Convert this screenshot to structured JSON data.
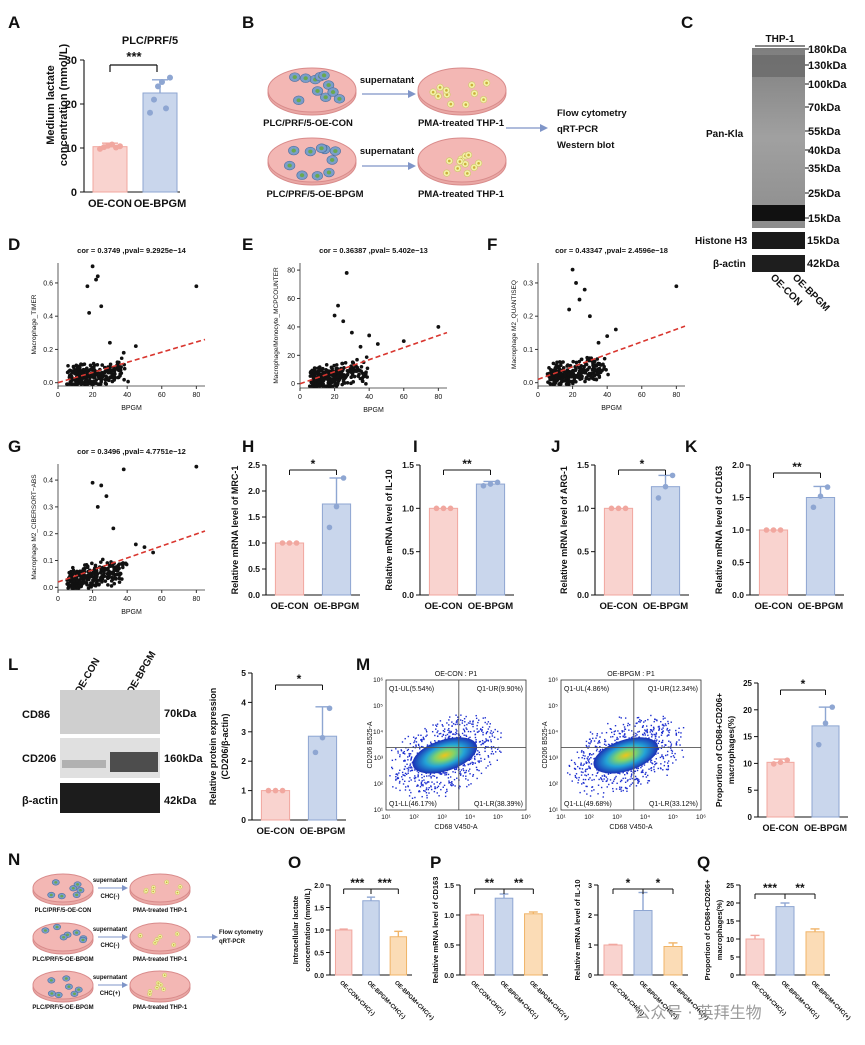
{
  "colors": {
    "control_fill": "#f9d3cf",
    "control_edge": "#f1a79f",
    "treat_fill": "#c9d6ec",
    "treat_edge": "#8ea6d2",
    "chc_fill": "#fbdcb6",
    "chc_edge": "#f0b468",
    "scatter_dot": "#111111",
    "regression": "#d9362f",
    "dish_edge": "#d98b8b",
    "dish_fill": "#f3b7b4",
    "arrow": "#7f95c8"
  },
  "panel_labels": [
    "A",
    "B",
    "C",
    "D",
    "E",
    "F",
    "G",
    "H",
    "I",
    "J",
    "K",
    "L",
    "M",
    "N",
    "O",
    "P",
    "Q"
  ],
  "panel_a": {
    "title": "PLC/PRF/5",
    "ylabel_line1": "Medium lactate",
    "ylabel_line2": "concentration (mmol/L)",
    "sig": "***",
    "ticks": [
      "0",
      "10",
      "20",
      "30"
    ],
    "categories": [
      "OE-CON",
      "OE-BPGM"
    ]
  },
  "panel_b": {
    "row1_left": "PLC/PRF/5-OE-CON",
    "row1_right": "PMA-treated THP-1",
    "row2_left": "PLC/PRF/5-OE-BPGM",
    "row2_right": "PMA-treated THP-1",
    "arrow_label": "supernatant",
    "methods": [
      "Flow cytometry",
      "qRT-PCR",
      "Western blot"
    ]
  },
  "panel_c": {
    "cell_line": "THP-1",
    "label_main": "Pan-Kla",
    "markers": [
      "180kDa",
      "130kDa",
      "100kDa",
      "70kDa",
      "55kDa",
      "40kDa",
      "35kDa",
      "25kDa",
      "15kDa"
    ],
    "histone": "Histone H3",
    "histone_kda": "15kDa",
    "actin": "β-actin",
    "actin_kda": "42kDa",
    "lanes": [
      "OE-CON",
      "OE-BPGM"
    ]
  },
  "scatter_panels": [
    {
      "title": "cor = 0.3749 ,pval= 9.2925e−14",
      "ylabel": "Macrophage_TIMER",
      "xlabel": "BPGM",
      "yticks": [
        "0.0",
        "0.2",
        "0.4",
        "0.6"
      ],
      "xticks": [
        "0",
        "20",
        "40",
        "60",
        "80"
      ]
    },
    {
      "title": "cor = 0.36387 ,pval= 5.402e−13",
      "ylabel": "Macrophage/Monocyte_MCPCOUNTER",
      "xlabel": "BPGM",
      "yticks": [
        "0",
        "20",
        "40",
        "60",
        "80"
      ],
      "xticks": [
        "0",
        "20",
        "40",
        "60",
        "80"
      ]
    },
    {
      "title": "cor = 0.43347 ,pval= 2.4596e−18",
      "ylabel": "Macrophage M2_QUANTISEQ",
      "xlabel": "BPGM",
      "yticks": [
        "0.0",
        "0.1",
        "0.2",
        "0.3"
      ],
      "xticks": [
        "0",
        "20",
        "40",
        "60",
        "80"
      ]
    },
    {
      "title": "cor = 0.3496 ,pval= 4.7751e−12",
      "ylabel": "Macrophage M2_CIBERSORT−ABS",
      "xlabel": "BPGM",
      "yticks": [
        "0.0",
        "0.1",
        "0.2",
        "0.3",
        "0.4"
      ],
      "xticks": [
        "0",
        "20",
        "40",
        "60",
        "80"
      ]
    }
  ],
  "qpcr_panels": [
    {
      "ylabel": "Relative mRNA level of MRC-1",
      "sig": "*",
      "yticks": [
        "0.0",
        "0.5",
        "1.0",
        "1.5",
        "2.0",
        "2.5"
      ],
      "categories": [
        "OE-CON",
        "OE-BPGM"
      ]
    },
    {
      "ylabel": "Relative mRNA level of IL-10",
      "sig": "**",
      "yticks": [
        "0.0",
        "0.5",
        "1.0",
        "1.5"
      ],
      "categories": [
        "OE-CON",
        "OE-BPGM"
      ]
    },
    {
      "ylabel": "Relative mRNA level of ARG-1",
      "sig": "*",
      "yticks": [
        "0.0",
        "0.5",
        "1.0",
        "1.5"
      ],
      "categories": [
        "OE-CON",
        "OE-BPGM"
      ]
    },
    {
      "ylabel": "Relative mRNA level of CD163",
      "sig": "**",
      "yticks": [
        "0.0",
        "0.5",
        "1.0",
        "1.5",
        "2.0"
      ],
      "categories": [
        "OE-CON",
        "OE-BPGM"
      ]
    }
  ],
  "panel_l": {
    "lanes": [
      "OE-CON",
      "OE-BPGM"
    ],
    "rows": [
      {
        "name": "CD86",
        "kda": "70kDa"
      },
      {
        "name": "CD206",
        "kda": "160kDa"
      },
      {
        "name": "β-actin",
        "kda": "42kDa"
      }
    ],
    "ylabel_line1": "Relative protein expression",
    "ylabel_line2": "(CD206/β-actin)",
    "sig": "*",
    "yticks": [
      "0",
      "1",
      "2",
      "3",
      "4",
      "5"
    ],
    "categories": [
      "OE-CON",
      "OE-BPGM"
    ]
  },
  "panel_m": {
    "plots": [
      {
        "title": "OE-CON : P1",
        "ul": "Q1-UL(5.54%)",
        "ur": "Q1-UR(9.90%)",
        "ll": "Q1-LL(46.17%)",
        "lr": "Q1-LR(38.39%)"
      },
      {
        "title": "OE-BPGM : P1",
        "ul": "Q1-UL(4.86%)",
        "ur": "Q1-UR(12.34%)",
        "ll": "Q1-LL(49.68%)",
        "lr": "Q1-LR(33.12%)"
      }
    ],
    "xlabel": "CD68 V450-A",
    "ylabel": "CD206 B525-A",
    "yticks": [
      "10¹",
      "10²",
      "10³",
      "10⁴",
      "10⁵",
      "10⁶"
    ],
    "xticks": [
      "10¹",
      "10²",
      "10³",
      "10⁴",
      "10⁵",
      "10⁶"
    ],
    "bar_ylabel_line1": "Proportion of CD68+CD206+",
    "bar_ylabel_line2": "macrophages(%)",
    "sig": "*",
    "bar_yticks": [
      "0",
      "5",
      "10",
      "15",
      "20",
      "25"
    ],
    "categories": [
      "OE-CON",
      "OE-BPGM"
    ]
  },
  "panel_n": {
    "row1_left": "PLC/PRF/5-OE-CON",
    "row2_left": "PLC/PRF/5-OE-BPGM",
    "row3_left": "PLC/PRF/5-OE-BPGM",
    "right": "PMA-treated THP-1",
    "arrow_label": "supernatant",
    "chc": [
      "CHC(-)",
      "CHC(-)",
      "CHC(+)"
    ],
    "methods": [
      "Flow cytometry",
      "qRT-PCR"
    ]
  },
  "triple_categories": [
    "OE-CON+CHC(-)",
    "OE-BPGM+CHC(-)",
    "OE-BPGM+CHC(+)"
  ],
  "panel_o": {
    "ylabel_line1": "Intracellular lactate",
    "ylabel_line2": "concentration (mmol/L)",
    "yticks": [
      "0.0",
      "0.5",
      "1.0",
      "1.5",
      "2.0"
    ],
    "sigs": [
      "***",
      "***"
    ]
  },
  "panel_p1": {
    "ylabel": "Relative mRNA level of CD163",
    "yticks": [
      "0.0",
      "0.5",
      "1.0",
      "1.5"
    ],
    "sigs": [
      "**",
      "**"
    ]
  },
  "panel_p2": {
    "ylabel": "Relative mRNA level of IL-10",
    "yticks": [
      "0",
      "1",
      "2",
      "3"
    ],
    "sigs": [
      "*",
      "*"
    ]
  },
  "panel_q": {
    "ylabel_line1": "Proportion of CD68+CD206+",
    "ylabel_line2": "macrophages(%)",
    "yticks": [
      "0",
      "5",
      "10",
      "15",
      "20",
      "25"
    ],
    "sigs": [
      "***",
      "**"
    ]
  },
  "watermark": "公众号 · 英拜生物",
  "chart_data": [
    {
      "panel": "A",
      "type": "bar",
      "title": "PLC/PRF/5",
      "categories": [
        "OE-CON",
        "OE-BPGM"
      ],
      "values": [
        10.3,
        22.5
      ],
      "errors": [
        0.8,
        3.0
      ],
      "ylabel": "Medium lactate concentration (mmol/L)",
      "ylim": [
        0,
        30
      ],
      "points": [
        [
          9.8,
          10.2,
          10.5,
          10.8,
          10.1,
          10.4
        ],
        [
          18,
          21,
          24,
          25,
          19,
          26
        ]
      ]
    },
    {
      "panel": "D",
      "type": "scatter",
      "title": "cor = 0.3749 ,pval= 9.2925e−14",
      "xlabel": "BPGM",
      "ylabel": "Macrophage_TIMER",
      "xlim": [
        0,
        85
      ],
      "ylim": [
        -0.02,
        0.72
      ],
      "regression": {
        "x0": 0,
        "y0": 0.0,
        "x1": 85,
        "y1": 0.26
      },
      "outliers": [
        [
          20,
          0.7
        ],
        [
          23,
          0.64
        ],
        [
          17,
          0.58
        ],
        [
          22,
          0.62
        ],
        [
          45,
          0.22
        ],
        [
          80,
          0.58
        ],
        [
          38,
          0.18
        ],
        [
          30,
          0.24
        ],
        [
          25,
          0.46
        ],
        [
          18,
          0.42
        ]
      ]
    },
    {
      "panel": "E",
      "type": "scatter",
      "title": "cor = 0.36387 ,pval= 5.402e−13",
      "xlabel": "BPGM",
      "ylabel": "Macrophage/Monocyte_MCPCOUNTER",
      "xlim": [
        0,
        85
      ],
      "ylim": [
        -3,
        85
      ],
      "regression": {
        "x0": 0,
        "y0": 0,
        "x1": 85,
        "y1": 36
      },
      "outliers": [
        [
          27,
          78
        ],
        [
          22,
          55
        ],
        [
          20,
          48
        ],
        [
          25,
          44
        ],
        [
          40,
          34
        ],
        [
          60,
          30
        ],
        [
          80,
          40
        ],
        [
          30,
          36
        ],
        [
          45,
          28
        ],
        [
          35,
          26
        ]
      ]
    },
    {
      "panel": "F",
      "type": "scatter",
      "title": "cor = 0.43347 ,pval= 2.4596e−18",
      "xlabel": "BPGM",
      "ylabel": "Macrophage M2_QUANTISEQ",
      "xlim": [
        0,
        85
      ],
      "ylim": [
        -0.01,
        0.36
      ],
      "regression": {
        "x0": 0,
        "y0": 0.01,
        "x1": 85,
        "y1": 0.17
      },
      "outliers": [
        [
          20,
          0.34
        ],
        [
          22,
          0.3
        ],
        [
          27,
          0.28
        ],
        [
          24,
          0.25
        ],
        [
          30,
          0.2
        ],
        [
          45,
          0.16
        ],
        [
          80,
          0.29
        ],
        [
          35,
          0.12
        ],
        [
          40,
          0.14
        ],
        [
          18,
          0.22
        ]
      ]
    },
    {
      "panel": "G",
      "type": "scatter",
      "title": "cor = 0.3496 ,pval= 4.7751e−12",
      "xlabel": "BPGM",
      "ylabel": "Macrophage M2_CIBERSORT−ABS",
      "xlim": [
        0,
        85
      ],
      "ylim": [
        -0.01,
        0.46
      ],
      "regression": {
        "x0": 0,
        "y0": 0.02,
        "x1": 85,
        "y1": 0.21
      },
      "outliers": [
        [
          20,
          0.39
        ],
        [
          25,
          0.38
        ],
        [
          38,
          0.44
        ],
        [
          45,
          0.16
        ],
        [
          55,
          0.13
        ],
        [
          80,
          0.45
        ],
        [
          28,
          0.34
        ],
        [
          23,
          0.3
        ],
        [
          32,
          0.22
        ],
        [
          50,
          0.15
        ]
      ]
    },
    {
      "panel": "H",
      "type": "bar",
      "categories": [
        "OE-CON",
        "OE-BPGM"
      ],
      "values": [
        1.0,
        1.75
      ],
      "errors": [
        0.0,
        0.5
      ],
      "ylabel": "Relative mRNA level of MRC-1",
      "ylim": [
        0,
        2.5
      ],
      "points": [
        [
          1,
          1,
          1
        ],
        [
          1.3,
          1.7,
          2.25
        ]
      ]
    },
    {
      "panel": "I",
      "type": "bar",
      "categories": [
        "OE-CON",
        "OE-BPGM"
      ],
      "values": [
        1.0,
        1.28
      ],
      "errors": [
        0.0,
        0.03
      ],
      "ylabel": "Relative mRNA level of IL-10",
      "ylim": [
        0,
        1.5
      ],
      "points": [
        [
          1,
          1,
          1
        ],
        [
          1.26,
          1.28,
          1.3
        ]
      ]
    },
    {
      "panel": "J",
      "type": "bar",
      "categories": [
        "OE-CON",
        "OE-BPGM"
      ],
      "values": [
        1.0,
        1.25
      ],
      "errors": [
        0.0,
        0.13
      ],
      "ylabel": "Relative mRNA level of ARG-1",
      "ylim": [
        0,
        1.5
      ],
      "points": [
        [
          1,
          1,
          1
        ],
        [
          1.12,
          1.25,
          1.38
        ]
      ]
    },
    {
      "panel": "K",
      "type": "bar",
      "categories": [
        "OE-CON",
        "OE-BPGM"
      ],
      "values": [
        1.0,
        1.5
      ],
      "errors": [
        0.0,
        0.17
      ],
      "ylabel": "Relative mRNA level of CD163",
      "ylim": [
        0,
        2.0
      ],
      "points": [
        [
          1,
          1,
          1
        ],
        [
          1.35,
          1.52,
          1.66
        ]
      ]
    },
    {
      "panel": "L",
      "type": "bar",
      "categories": [
        "OE-CON",
        "OE-BPGM"
      ],
      "values": [
        1.0,
        2.85
      ],
      "errors": [
        0.0,
        1.0
      ],
      "ylabel": "Relative protein expression (CD206/β-actin)",
      "ylim": [
        0,
        5
      ],
      "points": [
        [
          1,
          1,
          1
        ],
        [
          2.3,
          2.8,
          3.8
        ]
      ]
    },
    {
      "panel": "M",
      "type": "bar",
      "categories": [
        "OE-CON",
        "OE-BPGM"
      ],
      "values": [
        10.2,
        17.0
      ],
      "errors": [
        0.6,
        3.5
      ],
      "ylabel": "Proportion of CD68+CD206+ macrophages(%)",
      "ylim": [
        0,
        25
      ],
      "points": [
        [
          9.9,
          10.2,
          10.6
        ],
        [
          13.5,
          17.5,
          20.5
        ]
      ]
    },
    {
      "panel": "O",
      "type": "bar",
      "categories": [
        "OE-CON+CHC(-)",
        "OE-BPGM+CHC(-)",
        "OE-BPGM+CHC(+)"
      ],
      "values": [
        1.0,
        1.65,
        0.85
      ],
      "errors": [
        0.02,
        0.08,
        0.12
      ],
      "ylabel": "Intracellular lactate concentration (mmol/L)",
      "ylim": [
        0,
        2.0
      ]
    },
    {
      "panel": "P",
      "type": "bar",
      "categories": [
        "OE-CON+CHC(-)",
        "OE-BPGM+CHC(-)",
        "OE-BPGM+CHC(+)"
      ],
      "values": [
        1.0,
        1.28,
        1.02
      ],
      "errors": [
        0.01,
        0.07,
        0.03
      ],
      "ylabel": "Relative mRNA level of CD163",
      "ylim": [
        0,
        1.5
      ]
    },
    {
      "panel": "P",
      "type": "bar",
      "categories": [
        "OE-CON+CHC(-)",
        "OE-BPGM+CHC(-)",
        "OE-BPGM+CHC(+)"
      ],
      "values": [
        1.0,
        2.15,
        0.95
      ],
      "errors": [
        0.02,
        0.6,
        0.12
      ],
      "ylabel": "Relative mRNA level of IL-10",
      "ylim": [
        0,
        3
      ]
    },
    {
      "panel": "Q",
      "type": "bar",
      "categories": [
        "OE-CON+CHC(-)",
        "OE-BPGM+CHC(-)",
        "OE-BPGM+CHC(+)"
      ],
      "values": [
        10.0,
        19.0,
        12.0
      ],
      "errors": [
        1.0,
        1.0,
        0.8
      ],
      "ylabel": "Proportion of CD68+CD206+ macrophages(%)",
      "ylim": [
        0,
        25
      ]
    }
  ]
}
